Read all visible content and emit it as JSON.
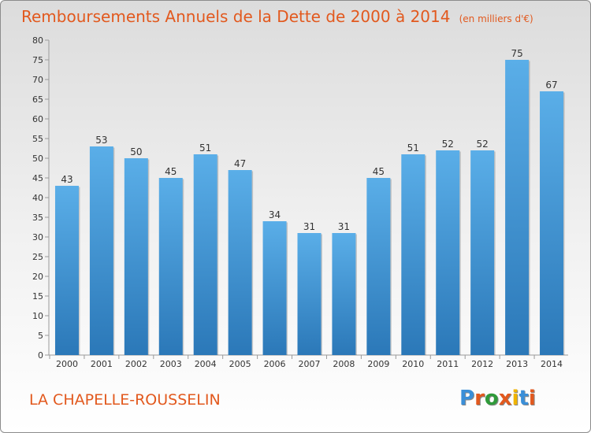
{
  "header": {
    "title": "Remboursements Annuels de la Dette de 2000 à 2014",
    "unit": "(en milliers d'€)"
  },
  "footer": {
    "commune": "LA CHAPELLE-ROUSSELIN",
    "logo_text": "Proxiti"
  },
  "colors": {
    "title": "#e2591e",
    "bar_top": "#5aaee8",
    "bar_bottom": "#2b78b8",
    "logo": [
      "#3a8fd8",
      "#e2591e",
      "#2f9a3a",
      "#e2591e",
      "#f0b400",
      "#3a8fd8",
      "#e2591e"
    ]
  },
  "chart_data": {
    "type": "bar",
    "title": "Remboursements Annuels de la Dette de 2000 à 2014",
    "xlabel": "",
    "ylabel": "",
    "ylim": [
      0,
      80
    ],
    "ytick_step": 5,
    "grid": false,
    "categories": [
      "2000",
      "2001",
      "2002",
      "2003",
      "2004",
      "2005",
      "2006",
      "2007",
      "2008",
      "2009",
      "2010",
      "2011",
      "2012",
      "2013",
      "2014"
    ],
    "values": [
      43,
      53,
      50,
      45,
      51,
      47,
      34,
      31,
      31,
      45,
      51,
      52,
      52,
      75,
      67
    ]
  }
}
